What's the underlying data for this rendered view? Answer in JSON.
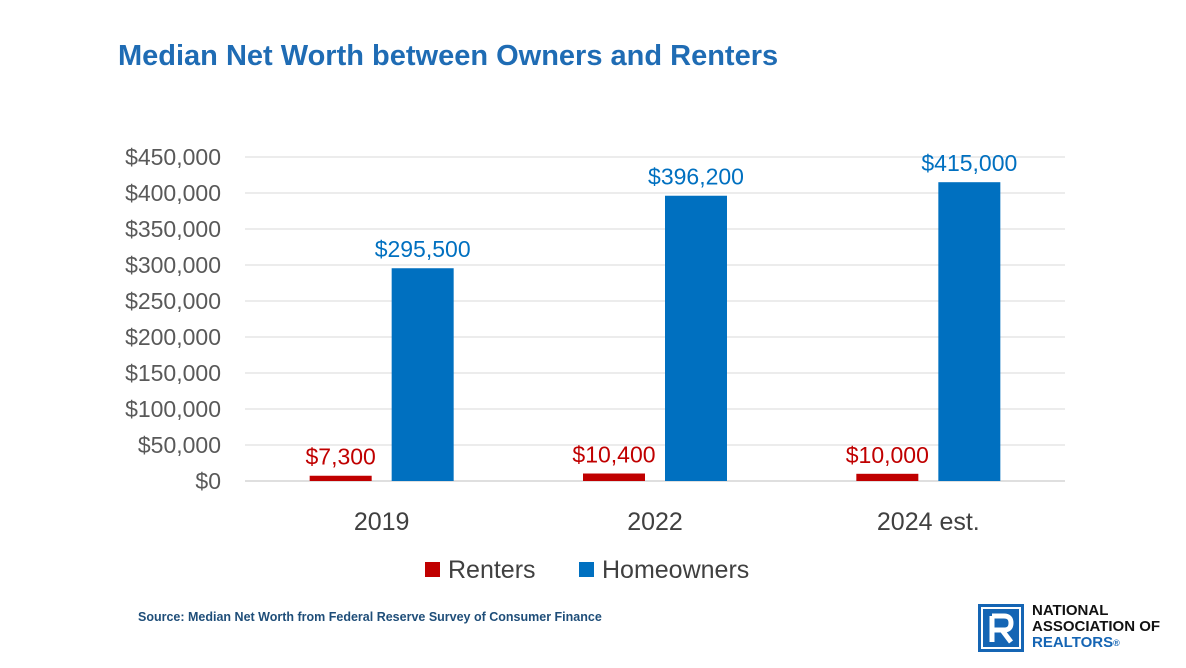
{
  "chart_data": {
    "type": "bar",
    "title": "Median Net Worth between Owners and Renters",
    "categories": [
      "2019",
      "2022",
      "2024 est."
    ],
    "series": [
      {
        "name": "Renters",
        "color": "#c00000",
        "values": [
          7300,
          10400,
          10000
        ],
        "labels": [
          "$7,300",
          "$10,400",
          "$10,000"
        ]
      },
      {
        "name": "Homeowners",
        "color": "#0070c0",
        "values": [
          295500,
          396200,
          415000
        ],
        "labels": [
          "$295,500",
          "$396,200",
          "$415,000"
        ]
      }
    ],
    "ylim": [
      0,
      450000
    ],
    "yticks": [
      0,
      50000,
      100000,
      150000,
      200000,
      250000,
      300000,
      350000,
      400000,
      450000
    ],
    "ytick_labels": [
      "$0",
      "$50,000",
      "$100,000",
      "$150,000",
      "$200,000",
      "$250,000",
      "$300,000",
      "$350,000",
      "$400,000",
      "$450,000"
    ],
    "grid": true,
    "legend": "bottom"
  },
  "source": "Source: Median Net Worth from Federal Reserve Survey of Consumer Finance",
  "logo": {
    "line1": "NATIONAL",
    "line2": "ASSOCIATION OF",
    "line3": "REALTORS",
    "reg": "®"
  }
}
